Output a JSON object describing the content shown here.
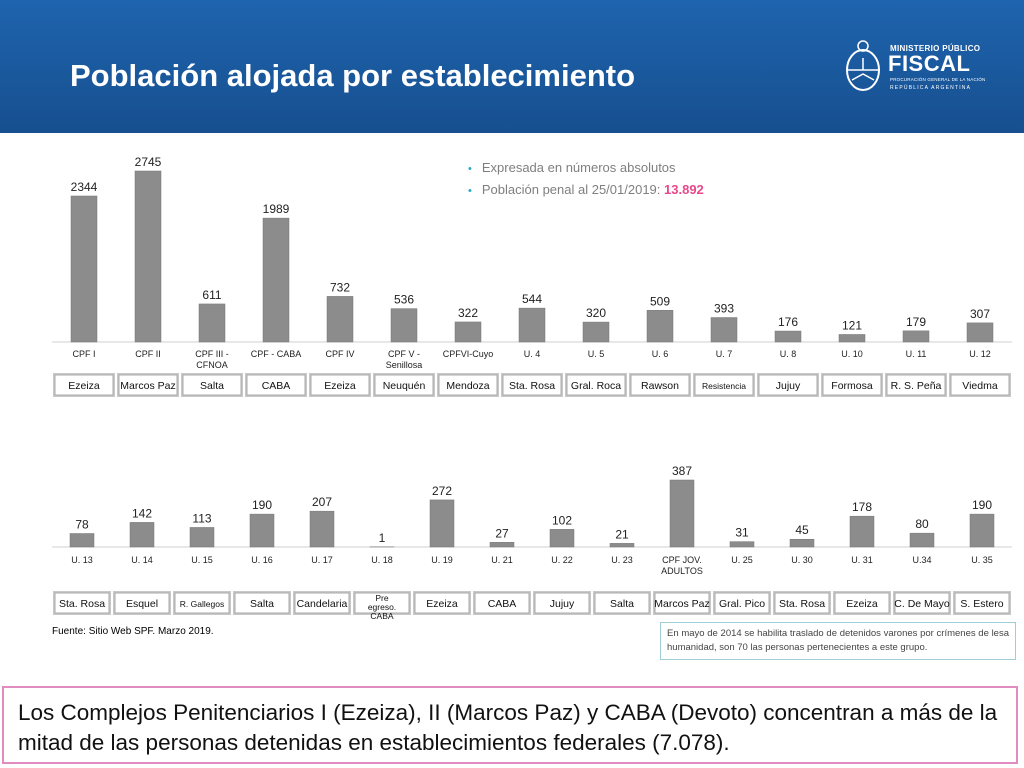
{
  "header": {
    "title": "Población alojada por establecimiento",
    "logo": {
      "line1": "MINISTERIO PÚBLICO",
      "line2": "FISCAL",
      "line3": "PROCURACIÓN GENERAL DE LA NACIÓN",
      "line4": "REPÚBLICA ARGENTINA"
    }
  },
  "bullets": {
    "item1": "Expresada en números absolutos",
    "item2_prefix": "Población penal al 25/01/2019: ",
    "item2_value": "13.892"
  },
  "colors": {
    "header": "#1b5aa0",
    "bar": "#8c8c8c",
    "highlight": "#e8488a",
    "bottom_border": "#e08cc0"
  },
  "chart_data": [
    {
      "type": "bar",
      "categories": [
        "CPF I",
        "CPF II",
        "CPF III - CFNOA",
        "CPF - CABA",
        "CPF IV",
        "CPF V - Senillosa",
        "CPFVI-Cuyo",
        "U. 4",
        "U. 5",
        "U. 6",
        "U. 7",
        "U. 8",
        "U. 10",
        "U. 11",
        "U. 12"
      ],
      "values": [
        2344,
        2745,
        611,
        1989,
        732,
        536,
        322,
        544,
        320,
        509,
        393,
        176,
        121,
        179,
        307
      ],
      "locations": [
        "Ezeiza",
        "Marcos Paz",
        "Salta",
        "CABA",
        "Ezeiza",
        "Neuquén",
        "Mendoza",
        "Sta. Rosa",
        "Gral. Roca",
        "Rawson",
        "Resistencia",
        "Jujuy",
        "Formosa",
        "R. S. Peña",
        "Viedma"
      ],
      "grid": false
    },
    {
      "type": "bar",
      "categories": [
        "U. 13",
        "U. 14",
        "U. 15",
        "U. 16",
        "U. 17",
        "U. 18",
        "U. 19",
        "U. 21",
        "U. 22",
        "U. 23",
        "CPF JOV. ADULTOS",
        "U. 25",
        "U. 30",
        "U. 31",
        "U.34",
        "U. 35"
      ],
      "values": [
        78,
        142,
        113,
        190,
        207,
        1,
        272,
        27,
        102,
        21,
        387,
        31,
        45,
        178,
        80,
        190
      ],
      "locations": [
        "Sta. Rosa",
        "Esquel",
        "R. Gallegos",
        "Salta",
        "Candelaria",
        "Pre egreso. CABA",
        "Ezeiza",
        "CABA",
        "Jujuy",
        "Salta",
        "Marcos Paz",
        "Gral. Pico",
        "Sta. Rosa",
        "Ezeiza",
        "C. De Mayo",
        "S. Estero"
      ],
      "grid": false
    }
  ],
  "source": "Fuente: Sitio Web SPF. Marzo 2019.",
  "note": "En mayo de 2014 se habilita traslado de detenidos varones por crímenes de lesa humanidad, son 70 las personas pertenecientes a este grupo.",
  "conclusion": "Los Complejos Penitenciarios I (Ezeiza), II (Marcos Paz) y CABA (Devoto) concentran a más de la mitad de las personas detenidas en establecimientos federales (7.078)."
}
